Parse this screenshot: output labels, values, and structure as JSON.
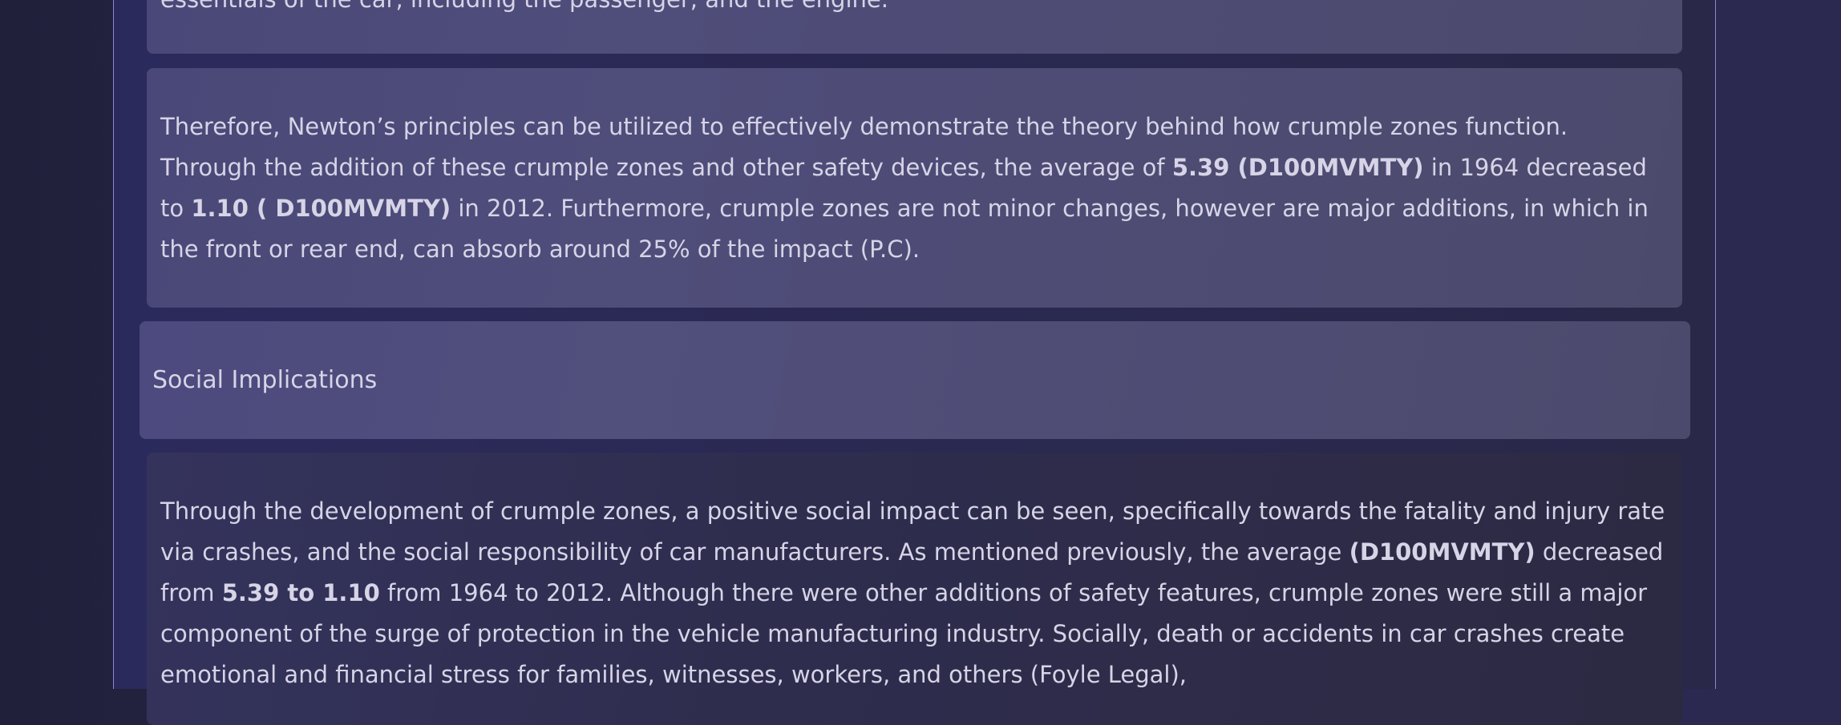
{
  "cards": [
    {
      "runs": [
        {
          "text": "essentials of the car, including the passenger, and the engine.",
          "bold": false
        }
      ]
    },
    {
      "runs": [
        {
          "text": "Therefore, Newton’s principles can be utilized to effectively demonstrate the theory behind how crumple zones function. Through the addition of these crumple zones and other safety devices, the average of ",
          "bold": false
        },
        {
          "text": "5.39 (D100MVMTY)",
          "bold": true
        },
        {
          "text": " in 1964 decreased to ",
          "bold": false
        },
        {
          "text": "1.10 ( D100MVMTY)",
          "bold": true
        },
        {
          "text": " in 2012. Furthermore, crumple zones are not minor changes, however are major additions, in which in the front or rear end, can absorb around 25% of the impact (P.C).",
          "bold": false
        }
      ]
    },
    {
      "heading": "Social Implications"
    },
    {
      "runs": [
        {
          "text": "Through the development of crumple zones, a positive social impact can be seen, specifically towards the fatality and injury rate via crashes, and the social responsibility of car manufacturers. As mentioned previously, the average ",
          "bold": false
        },
        {
          "text": "(D100MVMTY)",
          "bold": true
        },
        {
          "text": " decreased from ",
          "bold": false
        },
        {
          "text": "5.39 to 1.10",
          "bold": true
        },
        {
          "text": " from 1964 to 2012. Although there were other additions of safety features, crumple zones were still a major component of the surge of protection in the vehicle manufacturing industry. Socially, death or accidents in car crashes create emotional and financial stress for families, witnesses, workers, and others (Foyle Legal),",
          "bold": false
        }
      ]
    }
  ]
}
